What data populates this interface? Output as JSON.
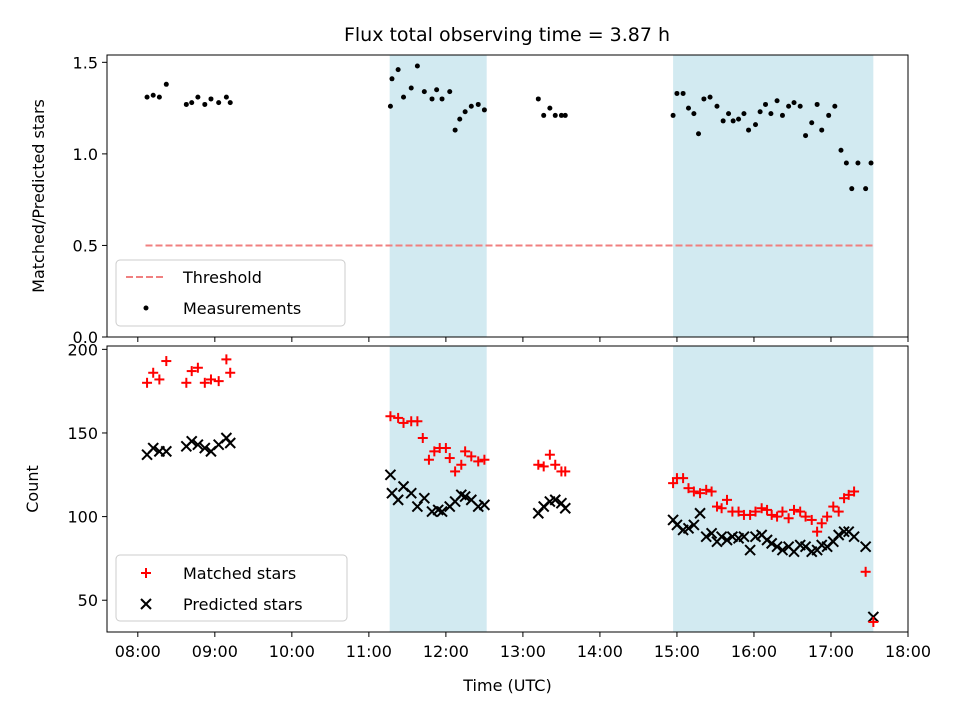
{
  "chart_data": [
    {
      "type": "scatter",
      "title": "Flux total observing time = 3.87 h",
      "xlabel": "",
      "ylabel": "Matched/Predicted stars",
      "xlim": [
        7.6,
        18.0
      ],
      "ylim": [
        0.0,
        1.54
      ],
      "yticks": [
        0.0,
        0.5,
        1.0,
        1.5
      ],
      "ytick_labels": [
        "0.0",
        "0.5",
        "1.0",
        "1.5"
      ],
      "shaded_spans": [
        [
          11.27,
          12.53
        ],
        [
          14.95,
          17.55
        ]
      ],
      "threshold": {
        "name": "Threshold",
        "y": 0.5,
        "x_range": [
          8.1,
          17.55
        ],
        "color": "#f08080"
      },
      "series": [
        {
          "name": "Measurements",
          "marker": "dot",
          "color": "#000000",
          "x": [
            8.12,
            8.2,
            8.28,
            8.37,
            8.63,
            8.7,
            8.78,
            8.87,
            8.95,
            9.05,
            9.15,
            9.2,
            11.28,
            11.3,
            11.38,
            11.45,
            11.55,
            11.63,
            11.72,
            11.82,
            11.88,
            11.95,
            12.05,
            12.12,
            12.18,
            12.25,
            12.33,
            12.42,
            12.5,
            13.2,
            13.27,
            13.35,
            13.42,
            13.5,
            13.55,
            14.95,
            15.0,
            15.08,
            15.15,
            15.22,
            15.28,
            15.35,
            15.43,
            15.52,
            15.6,
            15.67,
            15.73,
            15.8,
            15.87,
            15.93,
            16.02,
            16.08,
            16.15,
            16.22,
            16.3,
            16.37,
            16.45,
            16.52,
            16.6,
            16.67,
            16.75,
            16.82,
            16.88,
            16.97,
            17.05,
            17.13,
            17.2,
            17.27,
            17.35,
            17.45,
            17.52
          ],
          "y": [
            1.31,
            1.32,
            1.31,
            1.38,
            1.27,
            1.28,
            1.31,
            1.27,
            1.3,
            1.28,
            1.31,
            1.28,
            1.26,
            1.41,
            1.46,
            1.31,
            1.36,
            1.48,
            1.34,
            1.3,
            1.35,
            1.3,
            1.34,
            1.13,
            1.19,
            1.23,
            1.26,
            1.27,
            1.24,
            1.3,
            1.21,
            1.25,
            1.21,
            1.21,
            1.21,
            1.21,
            1.33,
            1.33,
            1.25,
            1.22,
            1.11,
            1.3,
            1.31,
            1.26,
            1.18,
            1.22,
            1.18,
            1.19,
            1.22,
            1.13,
            1.16,
            1.23,
            1.27,
            1.22,
            1.29,
            1.21,
            1.26,
            1.28,
            1.26,
            1.1,
            1.17,
            1.27,
            1.13,
            1.21,
            1.26,
            1.02,
            0.95,
            0.81,
            0.95,
            0.81,
            0.95
          ]
        }
      ],
      "legend": {
        "placement": "lower-left",
        "entries": [
          "Threshold",
          "Measurements"
        ]
      }
    },
    {
      "type": "scatter",
      "title": "",
      "xlabel": "Time (UTC)",
      "ylabel": "Count",
      "xlim": [
        7.6,
        18.0
      ],
      "ylim": [
        31,
        202
      ],
      "yticks": [
        50,
        100,
        150,
        200
      ],
      "ytick_labels": [
        "50",
        "100",
        "150",
        "200"
      ],
      "xticks": [
        8,
        9,
        10,
        11,
        12,
        13,
        14,
        15,
        16,
        17,
        18
      ],
      "xtick_labels": [
        "08:00",
        "09:00",
        "10:00",
        "11:00",
        "12:00",
        "13:00",
        "14:00",
        "15:00",
        "16:00",
        "17:00",
        "18:00"
      ],
      "shaded_spans": [
        [
          11.27,
          12.53
        ],
        [
          14.95,
          17.55
        ]
      ],
      "series": [
        {
          "name": "Matched stars",
          "marker": "plus",
          "color": "#ff0000",
          "x": [
            8.12,
            8.2,
            8.28,
            8.37,
            8.63,
            8.7,
            8.78,
            8.87,
            8.95,
            9.05,
            9.15,
            9.2,
            11.28,
            11.38,
            11.45,
            11.55,
            11.63,
            11.7,
            11.78,
            11.85,
            11.92,
            12.0,
            12.05,
            12.12,
            12.2,
            12.25,
            12.33,
            12.42,
            12.5,
            13.2,
            13.27,
            13.35,
            13.42,
            13.5,
            13.55,
            14.95,
            15.0,
            15.08,
            15.15,
            15.22,
            15.3,
            15.38,
            15.45,
            15.52,
            15.58,
            15.65,
            15.72,
            15.8,
            15.87,
            15.95,
            16.02,
            16.1,
            16.17,
            16.23,
            16.3,
            16.37,
            16.45,
            16.52,
            16.6,
            16.67,
            16.75,
            16.82,
            16.88,
            16.95,
            17.03,
            17.1,
            17.17,
            17.23,
            17.3,
            17.45,
            17.55
          ],
          "y": [
            180,
            186,
            182,
            193,
            180,
            187,
            189,
            180,
            182,
            181,
            194,
            186,
            160,
            159,
            156,
            157,
            157,
            147,
            134,
            139,
            141,
            141,
            135,
            127,
            131,
            139,
            136,
            133,
            134,
            131,
            130,
            137,
            131,
            127,
            127,
            120,
            123,
            123,
            117,
            115,
            114,
            116,
            115,
            106,
            105,
            110,
            103,
            103,
            101,
            101,
            103,
            105,
            104,
            101,
            100,
            103,
            99,
            104,
            103,
            100,
            98,
            91,
            96,
            100,
            106,
            103,
            111,
            113,
            115,
            67,
            37
          ]
        },
        {
          "name": "Predicted stars",
          "marker": "x",
          "color": "#000000",
          "x": [
            8.12,
            8.2,
            8.28,
            8.37,
            8.63,
            8.7,
            8.78,
            8.87,
            8.95,
            9.05,
            9.15,
            9.2,
            11.28,
            11.3,
            11.38,
            11.45,
            11.55,
            11.63,
            11.72,
            11.82,
            11.9,
            11.95,
            12.05,
            12.12,
            12.2,
            12.25,
            12.33,
            12.42,
            12.5,
            13.2,
            13.27,
            13.35,
            13.42,
            13.5,
            13.55,
            14.95,
            15.0,
            15.08,
            15.15,
            15.22,
            15.3,
            15.38,
            15.45,
            15.52,
            15.58,
            15.65,
            15.72,
            15.8,
            15.87,
            15.95,
            16.02,
            16.1,
            16.17,
            16.23,
            16.3,
            16.37,
            16.45,
            16.52,
            16.6,
            16.67,
            16.75,
            16.82,
            16.88,
            16.95,
            17.03,
            17.1,
            17.17,
            17.23,
            17.3,
            17.45,
            17.55
          ],
          "y": [
            137,
            141,
            139,
            139,
            142,
            145,
            143,
            141,
            139,
            143,
            147,
            144,
            125,
            114,
            110,
            118,
            114,
            106,
            111,
            103,
            104,
            103,
            106,
            109,
            113,
            112,
            110,
            106,
            107,
            102,
            106,
            109,
            110,
            108,
            105,
            98,
            95,
            92,
            93,
            95,
            102,
            88,
            90,
            85,
            88,
            86,
            88,
            87,
            88,
            80,
            88,
            89,
            86,
            84,
            82,
            80,
            82,
            79,
            83,
            82,
            79,
            80,
            83,
            82,
            85,
            89,
            91,
            91,
            88,
            82,
            40
          ]
        }
      ],
      "legend": {
        "placement": "lower-left",
        "entries": [
          "Matched stars",
          "Predicted stars"
        ]
      }
    }
  ]
}
